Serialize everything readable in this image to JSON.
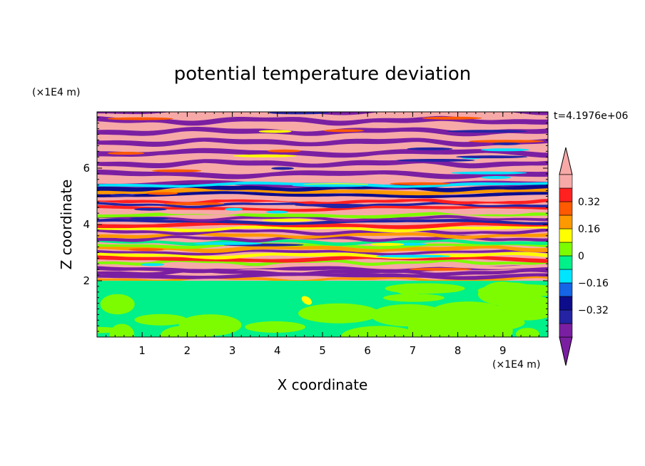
{
  "chart_data": {
    "type": "heatmap",
    "title": "potential temperature deviation",
    "xlabel": "X coordinate",
    "ylabel": "Z coordinate",
    "x_unit": "(×1E4 m)",
    "y_unit": "(×1E4 m)",
    "xlim": [
      0,
      10
    ],
    "ylim": [
      0,
      8
    ],
    "x_ticks": [
      1,
      2,
      3,
      4,
      5,
      6,
      7,
      8,
      9
    ],
    "y_ticks": [
      2,
      4,
      6
    ],
    "time_label": "t=4.1976e+06",
    "colorbar": {
      "levels": [
        -0.48,
        -0.4,
        -0.32,
        -0.24,
        -0.16,
        -0.08,
        0,
        0.08,
        0.16,
        0.24,
        0.32,
        0.4,
        0.48
      ],
      "colors": [
        "#7b1fa2",
        "#2323a3",
        "#0d0d8c",
        "#1565e6",
        "#00e5ff",
        "#00f08a",
        "#7dfc00",
        "#ffff00",
        "#ff9900",
        "#ff5a00",
        "#ff2020",
        "#f7a9a8"
      ],
      "labels": [
        {
          "value": 0.32,
          "text": "0.32"
        },
        {
          "value": 0.16,
          "text": "0.16"
        },
        {
          "value": 0,
          "text": "0"
        },
        {
          "value": -0.16,
          "text": "−0.16"
        },
        {
          "value": -0.32,
          "text": "−0.32"
        }
      ],
      "extend": "both"
    },
    "lower_layer": {
      "z_top": 2.0,
      "dominant_values": [
        0.0,
        0.04
      ],
      "note_color_main": "#7dfc00"
    },
    "upper_layer": {
      "z_range": [
        2.0,
        8.0
      ],
      "pattern": "horizontal bands alternating strongly positive and strongly negative"
    }
  }
}
